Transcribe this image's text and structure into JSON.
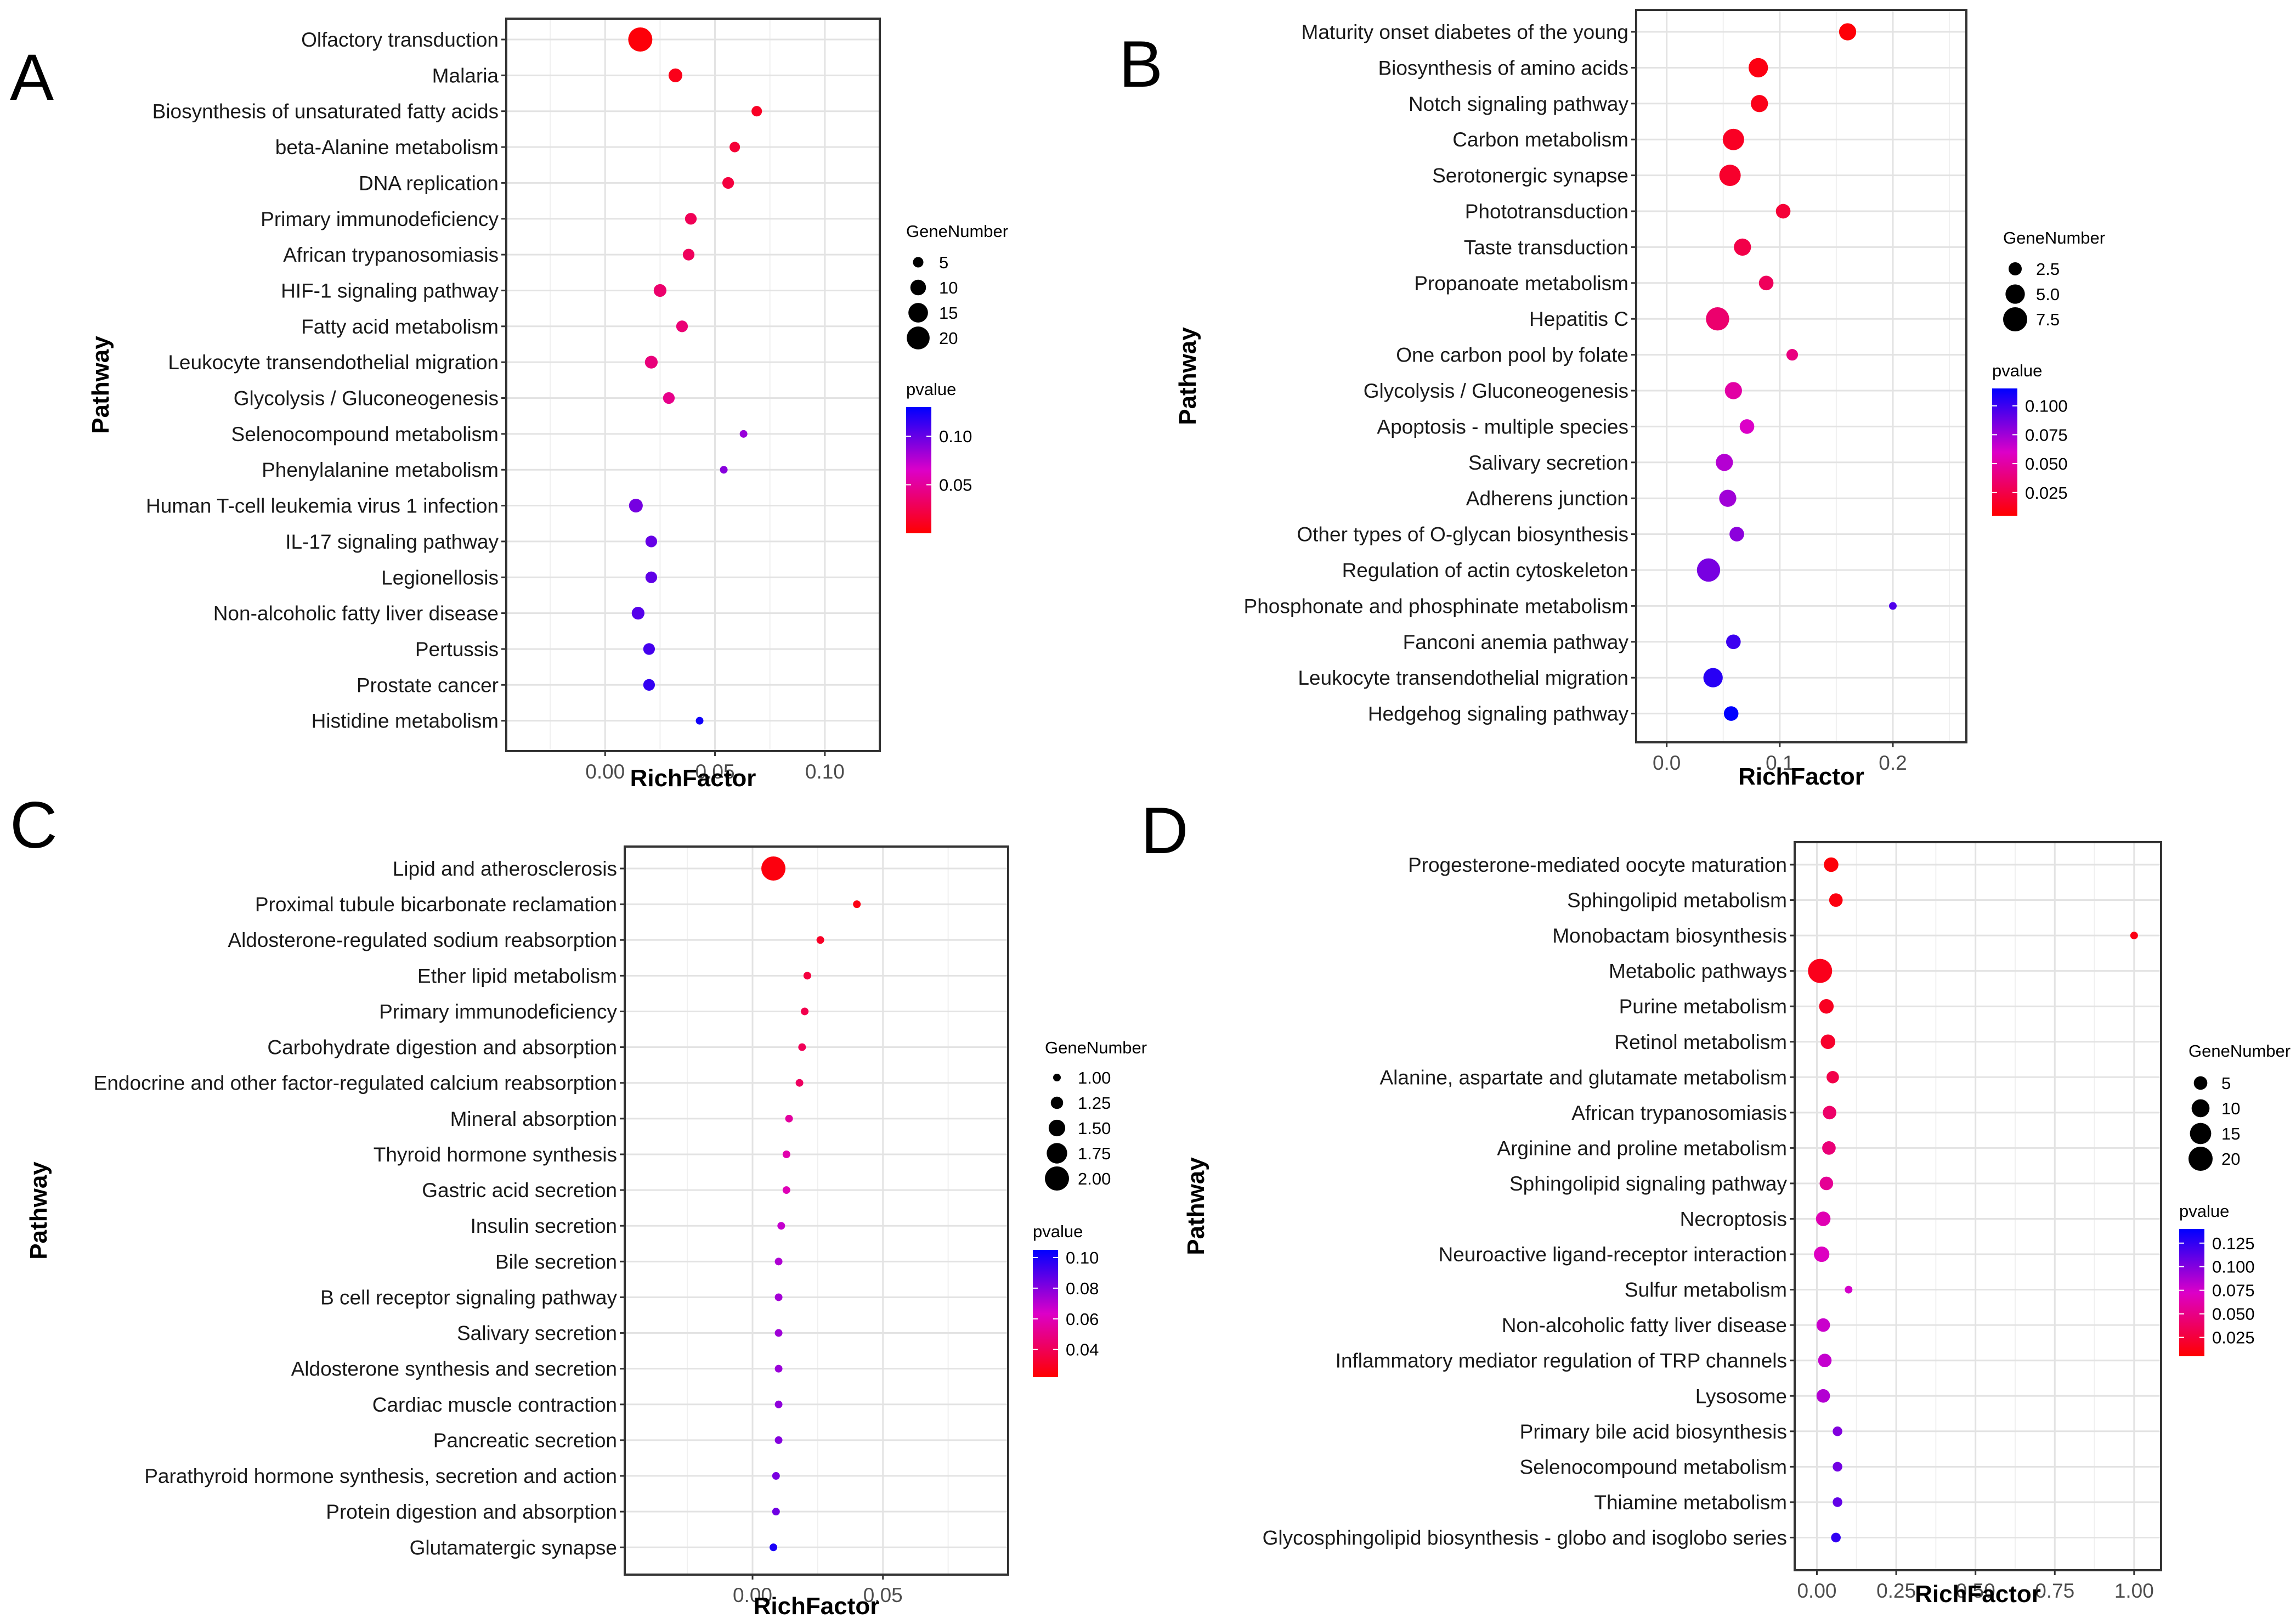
{
  "figure": {
    "panels": [
      "A",
      "B",
      "C",
      "D"
    ]
  },
  "chart_data": [
    {
      "panel": "A",
      "type": "scatter",
      "xlabel": "RichFactor",
      "ylabel": "Pathway",
      "xlim": [
        -0.045,
        0.125
      ],
      "xticks": [
        0.0,
        0.05,
        0.1
      ],
      "xtick_labels": [
        "0.00",
        "0.05",
        "0.10"
      ],
      "size_legend": {
        "title": "GeneNumber",
        "values": [
          5,
          10,
          15,
          20
        ],
        "labels": [
          "5",
          "10",
          "15",
          "20"
        ]
      },
      "color_legend": {
        "title": "pvalue",
        "min": 0.0,
        "max": 0.13,
        "ticks": [
          0.05,
          0.1
        ],
        "tick_labels": [
          "0.05",
          "0.10"
        ]
      },
      "colors": {
        "low": "#ff0000",
        "high": "#0000ff"
      },
      "categories": [
        "Olfactory transduction",
        "Malaria",
        "Biosynthesis of unsaturated fatty acids",
        "beta-Alanine metabolism",
        "DNA replication",
        "Primary immunodeficiency",
        "African trypanosomiasis",
        "HIF-1 signaling pathway",
        "Fatty acid metabolism",
        "Leukocyte transendothelial migration",
        "Glycolysis / Gluconeogenesis",
        "Selenocompound metabolism",
        "Phenylalanine metabolism",
        "Human T-cell leukemia virus 1 infection",
        "IL-17 signaling pathway",
        "Legionellosis",
        "Non-alcoholic fatty liver disease",
        "Pertussis",
        "Prostate cancer",
        "Histidine metabolism"
      ],
      "x": [
        0.016,
        0.032,
        0.069,
        0.059,
        0.056,
        0.039,
        0.038,
        0.025,
        0.035,
        0.021,
        0.029,
        0.063,
        0.054,
        0.014,
        0.021,
        0.021,
        0.015,
        0.02,
        0.02,
        0.043
      ],
      "gene_number": [
        22,
        8,
        5,
        5,
        6,
        6,
        6,
        7,
        6,
        7,
        6,
        3,
        3,
        8,
        6,
        6,
        7,
        6,
        6,
        3
      ],
      "pvalue": [
        0.003,
        0.008,
        0.012,
        0.018,
        0.02,
        0.028,
        0.03,
        0.035,
        0.038,
        0.04,
        0.045,
        0.085,
        0.09,
        0.095,
        0.1,
        0.102,
        0.105,
        0.11,
        0.115,
        0.125
      ]
    },
    {
      "panel": "B",
      "type": "scatter",
      "xlabel": "RichFactor",
      "ylabel": "Pathway",
      "xlim": [
        -0.027,
        0.265
      ],
      "xticks": [
        0.0,
        0.1,
        0.2
      ],
      "xtick_labels": [
        "0.0",
        "0.1",
        "0.2"
      ],
      "size_legend": {
        "title": "GeneNumber",
        "values": [
          2.5,
          5.0,
          7.5
        ],
        "labels": [
          "2.5",
          "5.0",
          "7.5"
        ]
      },
      "color_legend": {
        "title": "pvalue",
        "min": 0.005,
        "max": 0.115,
        "ticks": [
          0.025,
          0.05,
          0.075,
          0.1
        ],
        "tick_labels": [
          "0.025",
          "0.050",
          "0.075",
          "0.100"
        ]
      },
      "colors": {
        "low": "#ff0000",
        "high": "#0000ff"
      },
      "categories": [
        "Maturity onset diabetes of the young",
        "Biosynthesis of amino acids",
        "Notch signaling pathway",
        "Carbon metabolism",
        "Serotonergic synapse",
        "Phototransduction",
        "Taste transduction",
        "Propanoate metabolism",
        "Hepatitis C",
        "One carbon pool by folate",
        "Glycolysis / Gluconeogenesis",
        "Apoptosis - multiple species",
        "Salivary secretion",
        "Adherens junction",
        "Other types of O-glycan biosynthesis",
        "Regulation of actin cytoskeleton",
        "Phosphonate and phosphinate metabolism",
        "Fanconi anemia pathway",
        "Leukocyte transendothelial migration",
        "Hedgehog signaling pathway"
      ],
      "x": [
        0.16,
        0.081,
        0.082,
        0.059,
        0.056,
        0.103,
        0.067,
        0.088,
        0.045,
        0.111,
        0.059,
        0.071,
        0.051,
        0.054,
        0.062,
        0.037,
        0.2,
        0.059,
        0.041,
        0.057
      ],
      "gene_number": [
        4,
        5,
        4,
        6,
        6,
        3,
        4,
        3,
        7,
        2,
        4,
        3,
        4,
        4,
        3,
        7,
        1,
        3,
        5,
        3
      ],
      "pvalue": [
        0.007,
        0.01,
        0.012,
        0.015,
        0.017,
        0.02,
        0.025,
        0.03,
        0.035,
        0.04,
        0.05,
        0.06,
        0.07,
        0.075,
        0.08,
        0.085,
        0.095,
        0.1,
        0.105,
        0.115
      ]
    },
    {
      "panel": "C",
      "type": "scatter",
      "xlabel": "RichFactor",
      "ylabel": "Pathway",
      "xlim": [
        -0.049,
        0.098
      ],
      "xticks": [
        0.0,
        0.05
      ],
      "xtick_labels": [
        "0.00",
        "0.05"
      ],
      "size_legend": {
        "title": "GeneNumber",
        "values": [
          1.0,
          1.25,
          1.5,
          1.75,
          2.0
        ],
        "labels": [
          "1.00",
          "1.25",
          "1.50",
          "1.75",
          "2.00"
        ]
      },
      "color_legend": {
        "title": "pvalue",
        "min": 0.022,
        "max": 0.105,
        "ticks": [
          0.04,
          0.06,
          0.08,
          0.1
        ],
        "tick_labels": [
          "0.04",
          "0.06",
          "0.08",
          "0.10"
        ]
      },
      "colors": {
        "low": "#ff0000",
        "high": "#0000ff"
      },
      "categories": [
        "Lipid and atherosclerosis",
        "Proximal tubule bicarbonate reclamation",
        "Aldosterone-regulated sodium reabsorption",
        "Ether lipid metabolism",
        "Primary immunodeficiency",
        "Carbohydrate digestion and absorption",
        "Endocrine and other factor-regulated calcium reabsorption",
        "Mineral absorption",
        "Thyroid hormone synthesis",
        "Gastric acid secretion",
        "Insulin secretion",
        "Bile secretion",
        "B cell receptor signaling pathway",
        "Salivary secretion",
        "Aldosterone synthesis and secretion",
        "Cardiac muscle contraction",
        "Pancreatic secretion",
        "Parathyroid hormone synthesis, secretion and action",
        "Protein digestion and absorption",
        "Glutamatergic synapse"
      ],
      "x": [
        0.008,
        0.04,
        0.026,
        0.021,
        0.02,
        0.019,
        0.018,
        0.014,
        0.013,
        0.013,
        0.011,
        0.01,
        0.01,
        0.01,
        0.01,
        0.01,
        0.01,
        0.009,
        0.009,
        0.008
      ],
      "gene_number": [
        2,
        1,
        1,
        1,
        1,
        1,
        1,
        1,
        1,
        1,
        1,
        1,
        1,
        1,
        1,
        1,
        1,
        1,
        1,
        1
      ],
      "pvalue": [
        0.025,
        0.026,
        0.03,
        0.035,
        0.038,
        0.04,
        0.042,
        0.055,
        0.058,
        0.06,
        0.068,
        0.072,
        0.074,
        0.075,
        0.076,
        0.078,
        0.08,
        0.082,
        0.084,
        0.1
      ]
    },
    {
      "panel": "D",
      "type": "scatter",
      "xlabel": "RichFactor",
      "ylabel": "Pathway",
      "xlim": [
        -0.07,
        1.085
      ],
      "xticks": [
        0.0,
        0.25,
        0.5,
        0.75,
        1.0
      ],
      "xtick_labels": [
        "0.00",
        "0.25",
        "0.50",
        "0.75",
        "1.00"
      ],
      "size_legend": {
        "title": "GeneNumber",
        "values": [
          5,
          10,
          15,
          20
        ],
        "labels": [
          "5",
          "10",
          "15",
          "20"
        ]
      },
      "color_legend": {
        "title": "pvalue",
        "min": 0.005,
        "max": 0.14,
        "ticks": [
          0.025,
          0.05,
          0.075,
          0.1,
          0.125
        ],
        "tick_labels": [
          "0.025",
          "0.050",
          "0.075",
          "0.100",
          "0.125"
        ]
      },
      "colors": {
        "low": "#ff0000",
        "high": "#0000ff"
      },
      "categories": [
        "Progesterone-mediated oocyte maturation",
        "Sphingolipid metabolism",
        "Monobactam biosynthesis",
        "Metabolic pathways",
        "Purine metabolism",
        "Retinol metabolism",
        "Alanine, aspartate and glutamate metabolism",
        "African trypanosomiasis",
        "Arginine and proline metabolism",
        "Sphingolipid signaling pathway",
        "Necroptosis",
        "Neuroactive ligand-receptor interaction",
        "Sulfur metabolism",
        "Non-alcoholic fatty liver disease",
        "Inflammatory mediator regulation of TRP channels",
        "Lysosome",
        "Primary bile acid biosynthesis",
        "Selenocompound metabolism",
        "Thiamine metabolism",
        "Glycosphingolipid biosynthesis - globo and isoglobo series"
      ],
      "x": [
        0.045,
        0.06,
        1.0,
        0.01,
        0.03,
        0.035,
        0.05,
        0.04,
        0.038,
        0.03,
        0.02,
        0.015,
        0.1,
        0.02,
        0.025,
        0.02,
        0.065,
        0.065,
        0.065,
        0.06
      ],
      "gene_number": [
        6,
        5,
        1,
        20,
        6,
        6,
        4,
        5,
        5,
        5,
        6,
        7,
        1,
        5,
        5,
        5,
        2,
        2,
        2,
        2
      ],
      "pvalue": [
        0.008,
        0.01,
        0.012,
        0.014,
        0.016,
        0.02,
        0.03,
        0.04,
        0.045,
        0.055,
        0.065,
        0.07,
        0.075,
        0.078,
        0.08,
        0.085,
        0.1,
        0.105,
        0.11,
        0.125
      ]
    }
  ]
}
